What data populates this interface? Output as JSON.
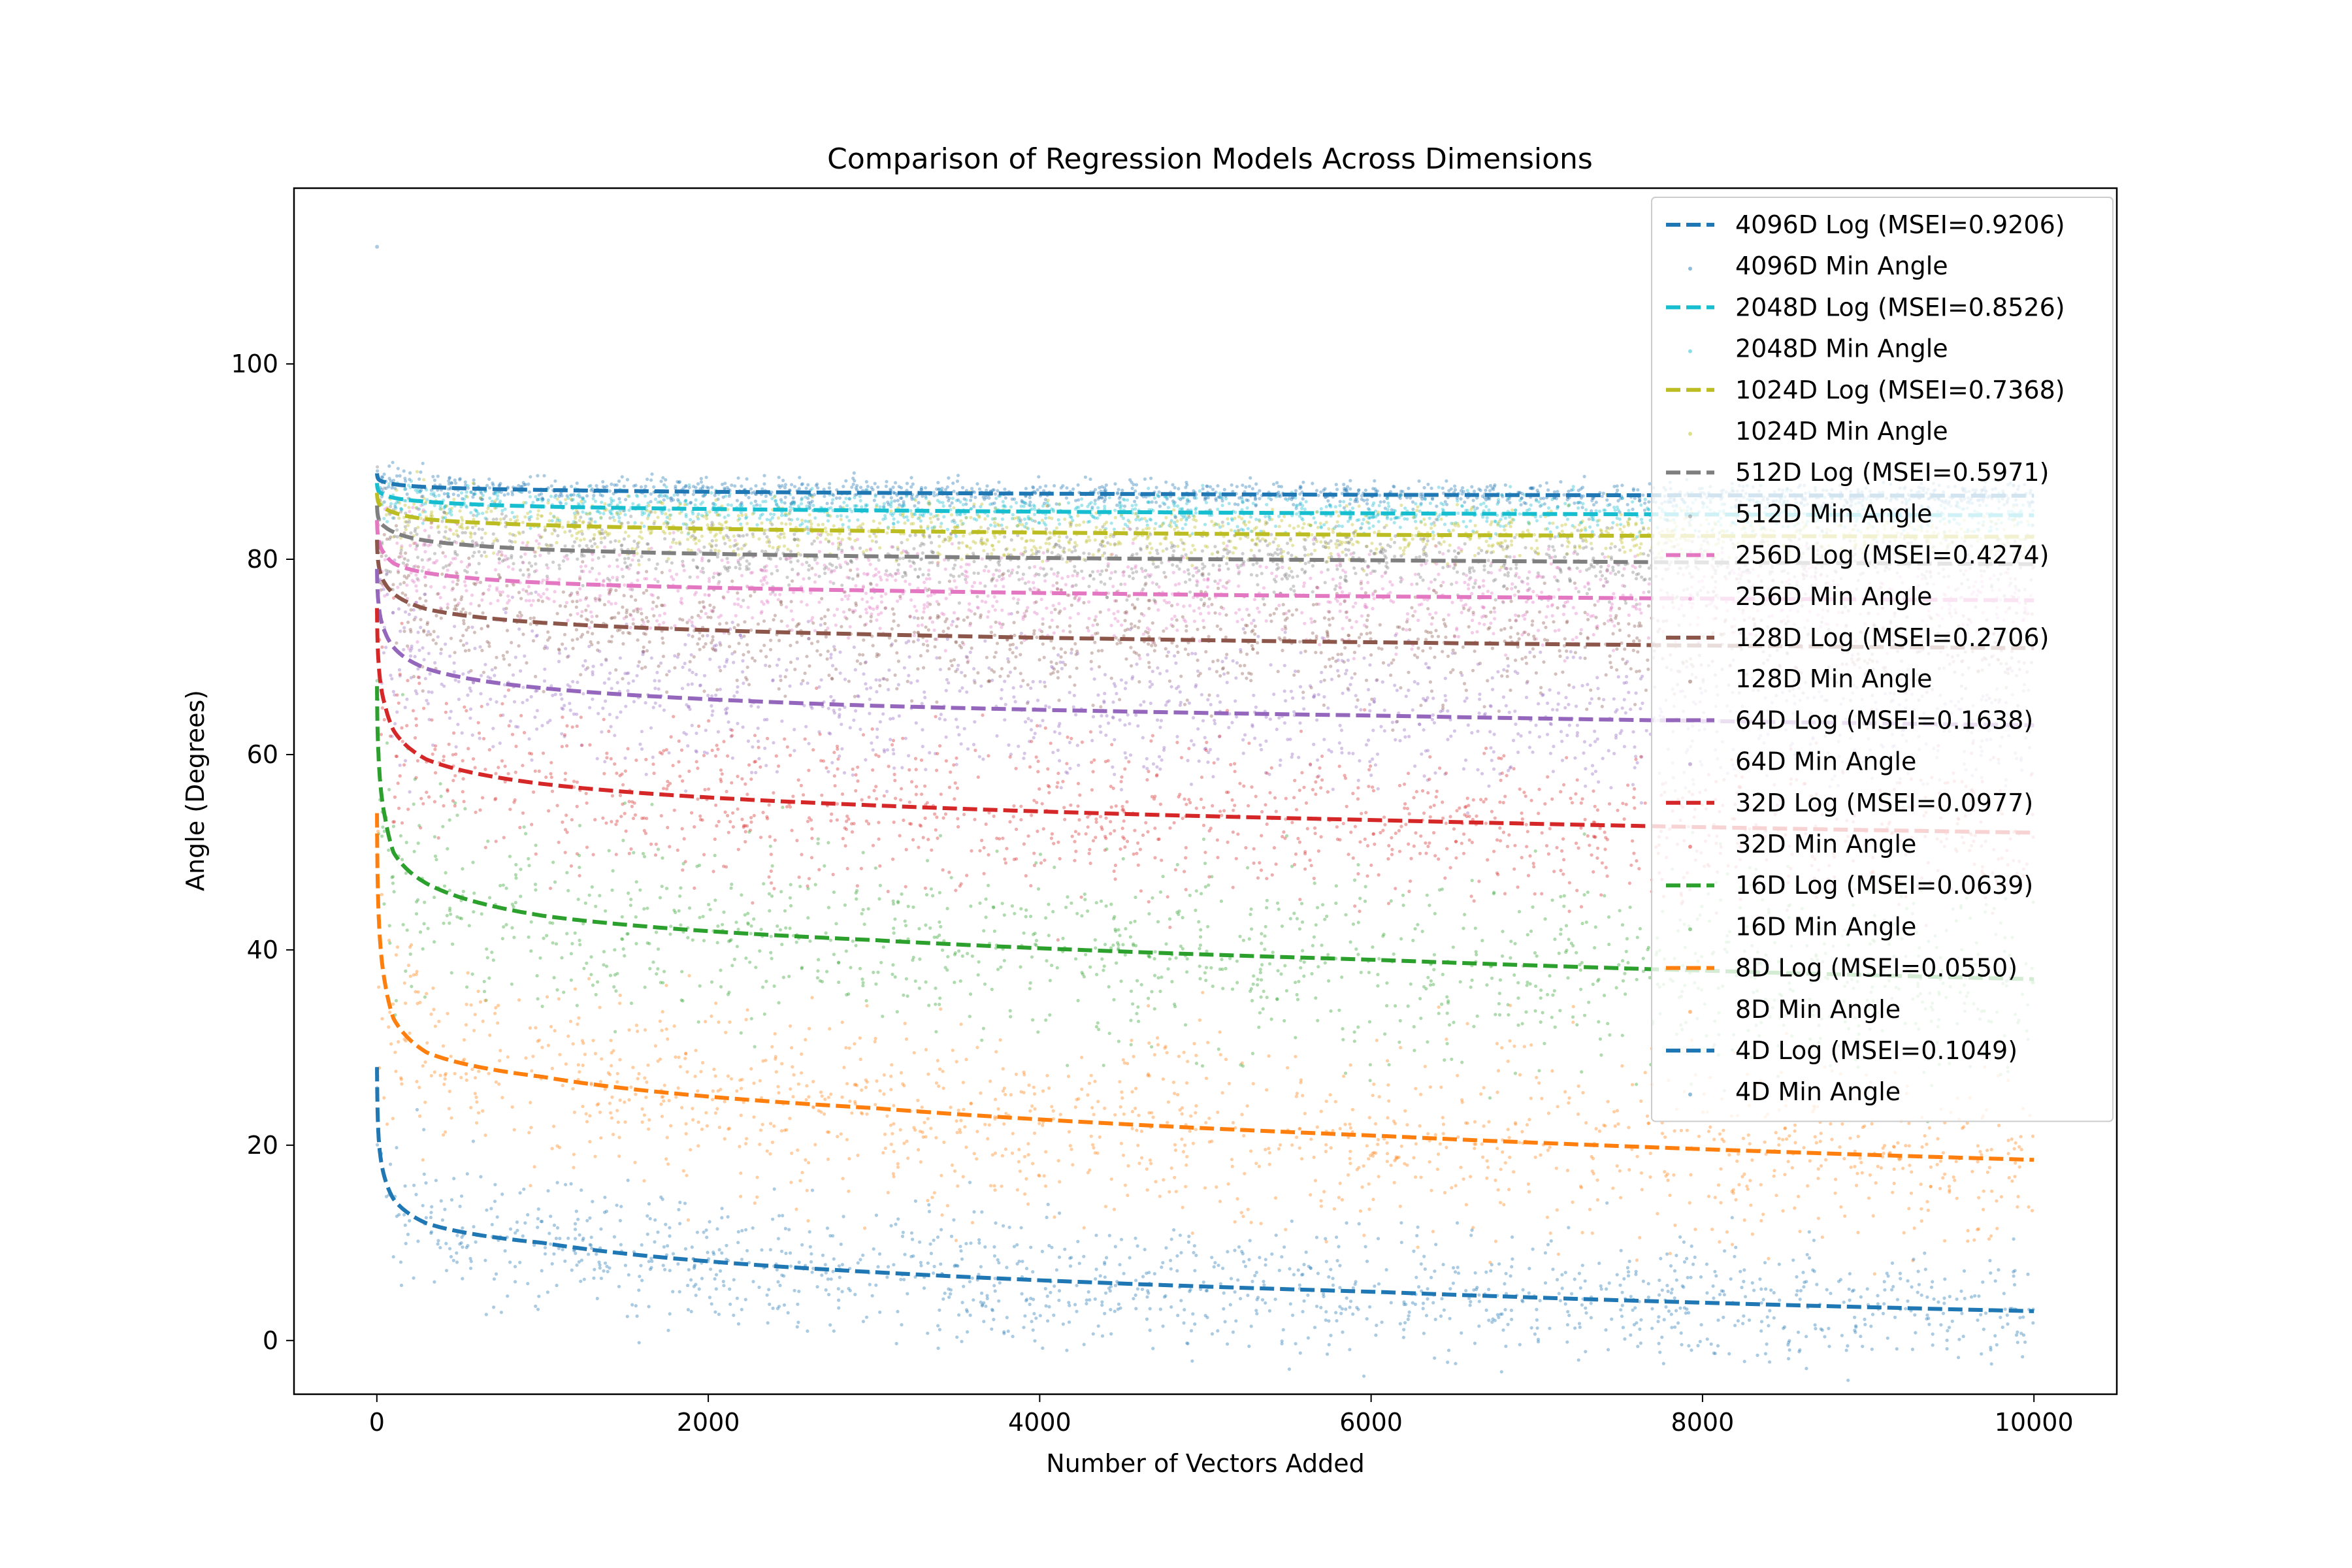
{
  "chart_data": {
    "type": "scatter",
    "title": "Comparison of Regression Models Across Dimensions",
    "xlabel": "Number of Vectors Added",
    "ylabel": "Angle (Degrees)",
    "xlim": [
      -500,
      10500
    ],
    "ylim": [
      -5.5,
      118
    ],
    "xticks": [
      0,
      2000,
      4000,
      6000,
      8000,
      10000
    ],
    "yticks": [
      0,
      20,
      40,
      60,
      80,
      100
    ],
    "grid": false,
    "legend_position": "top-right",
    "series": [
      {
        "dim": "4096D",
        "fit_name": "4096D Log (MSEI=0.9206)",
        "points_name": "4096D Min Angle",
        "color": "#1f77b4",
        "fit": {
          "x": [
            1,
            10,
            50,
            100,
            300,
            1000,
            3000,
            6000,
            10000
          ],
          "y": [
            88.8,
            88.2,
            87.9,
            87.7,
            87.4,
            87.1,
            86.8,
            86.6,
            86.5
          ]
        },
        "spread": 0.7,
        "start_value": 112
      },
      {
        "dim": "2048D",
        "fit_name": "2048D Log (MSEI=0.8526)",
        "points_name": "2048D Min Angle",
        "color": "#17becf",
        "fit": {
          "x": [
            1,
            10,
            50,
            100,
            300,
            1000,
            3000,
            6000,
            10000
          ],
          "y": [
            87.8,
            87.0,
            86.6,
            86.3,
            85.9,
            85.4,
            85.0,
            84.7,
            84.5
          ]
        },
        "spread": 1.0
      },
      {
        "dim": "1024D",
        "fit_name": "1024D Log (MSEI=0.7368)",
        "points_name": "1024D Min Angle",
        "color": "#bcbd22",
        "fit": {
          "x": [
            1,
            10,
            50,
            100,
            300,
            1000,
            3000,
            6000,
            10000
          ],
          "y": [
            86.8,
            85.8,
            85.2,
            84.8,
            84.1,
            83.5,
            82.9,
            82.5,
            82.3
          ]
        },
        "spread": 1.4
      },
      {
        "dim": "512D",
        "fit_name": "512D Log (MSEI=0.5971)",
        "points_name": "512D Min Angle",
        "color": "#7f7f7f",
        "fit": {
          "x": [
            1,
            10,
            50,
            100,
            300,
            1000,
            3000,
            6000,
            10000
          ],
          "y": [
            85.5,
            84.2,
            83.3,
            82.8,
            81.9,
            81.0,
            80.3,
            79.9,
            79.5
          ]
        },
        "spread": 1.9
      },
      {
        "dim": "256D",
        "fit_name": "256D Log (MSEI=0.4274)",
        "points_name": "256D Min Angle",
        "color": "#e377c2",
        "fit": {
          "x": [
            1,
            10,
            50,
            100,
            300,
            1000,
            3000,
            6000,
            10000
          ],
          "y": [
            84.0,
            82.0,
            80.5,
            79.6,
            78.6,
            77.6,
            76.8,
            76.2,
            75.8
          ]
        },
        "spread": 2.5
      },
      {
        "dim": "128D",
        "fit_name": "128D Log (MSEI=0.2706)",
        "points_name": "128D Min Angle",
        "color": "#8c564b",
        "fit": {
          "x": [
            1,
            10,
            50,
            100,
            300,
            1000,
            3000,
            6000,
            10000
          ],
          "y": [
            82.0,
            79.5,
            77.5,
            76.5,
            74.9,
            73.5,
            72.3,
            71.5,
            70.9
          ]
        },
        "spread": 3.0
      },
      {
        "dim": "64D",
        "fit_name": "64D Log (MSEI=0.1638)",
        "points_name": "64D Min Angle",
        "color": "#9467bd",
        "fit": {
          "x": [
            1,
            10,
            50,
            100,
            300,
            1000,
            3000,
            6000,
            10000
          ],
          "y": [
            79.0,
            75.5,
            72.5,
            71.0,
            68.8,
            66.8,
            65.0,
            64.0,
            63.0
          ]
        },
        "spread": 3.6
      },
      {
        "dim": "32D",
        "fit_name": "32D Log (MSEI=0.0977)",
        "points_name": "32D Min Angle",
        "color": "#d62728",
        "fit": {
          "x": [
            1,
            10,
            50,
            100,
            300,
            1000,
            3000,
            6000,
            10000
          ],
          "y": [
            75.0,
            69.5,
            65.0,
            62.5,
            59.5,
            57.0,
            54.8,
            53.3,
            52.0
          ]
        },
        "spread": 4.2
      },
      {
        "dim": "16D",
        "fit_name": "16D Log (MSEI=0.0639)",
        "points_name": "16D Min Angle",
        "color": "#2ca02c",
        "fit": {
          "x": [
            1,
            10,
            50,
            100,
            300,
            1000,
            3000,
            6000,
            10000
          ],
          "y": [
            67.0,
            60.0,
            53.5,
            50.0,
            46.8,
            43.5,
            41.0,
            39.0,
            37.0
          ]
        },
        "spread": 5.0
      },
      {
        "dim": "8D",
        "fit_name": "8D Log (MSEI=0.0550)",
        "points_name": "8D Min Angle",
        "color": "#ff7f0e",
        "fit": {
          "x": [
            1,
            10,
            50,
            100,
            300,
            1000,
            3000,
            6000,
            10000
          ],
          "y": [
            54.0,
            44.0,
            36.5,
            33.0,
            29.5,
            27.0,
            23.8,
            21.0,
            18.5
          ]
        },
        "spread": 5.0
      },
      {
        "dim": "4D",
        "fit_name": "4D Log (MSEI=0.1049)",
        "points_name": "4D Min Angle",
        "color": "#1f77b4",
        "fit": {
          "x": [
            1,
            10,
            50,
            100,
            300,
            1000,
            3000,
            6000,
            10000
          ],
          "y": [
            28.0,
            21.0,
            16.5,
            14.5,
            12.0,
            10.0,
            7.0,
            5.0,
            3.0
          ]
        },
        "spread": 3.3
      }
    ]
  }
}
